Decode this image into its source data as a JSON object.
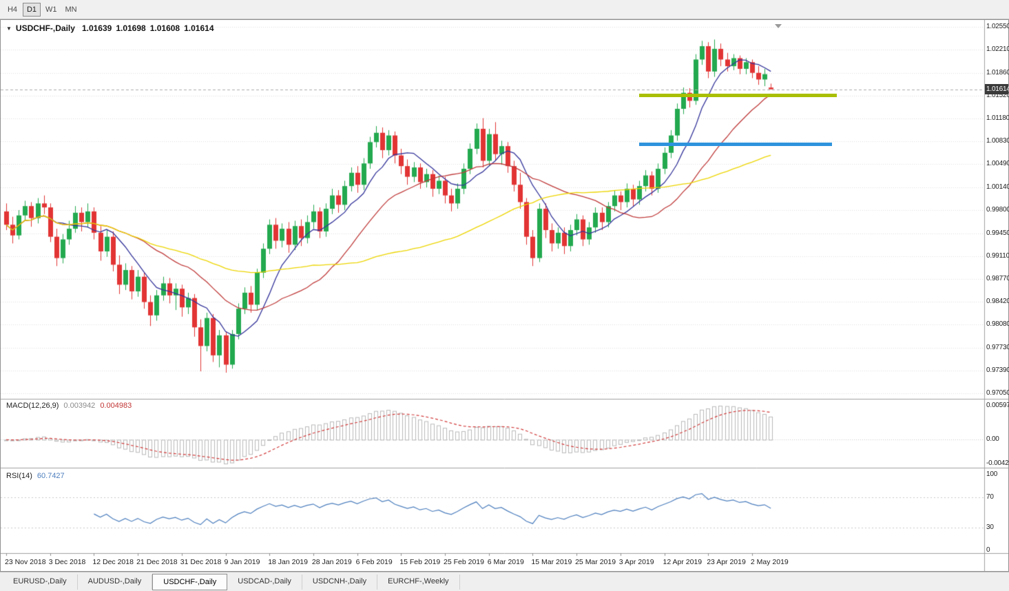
{
  "toolbar": {
    "timeframes": [
      "H4",
      "D1",
      "W1",
      "MN"
    ],
    "active": "D1"
  },
  "chart": {
    "symbol": "USDCHF-,Daily",
    "ohlc": {
      "open": "1.01639",
      "high": "1.01698",
      "low": "1.01608",
      "close": "1.01614"
    },
    "current_price": "1.01614",
    "price_scale_labels": [
      "1.02550",
      "1.02210",
      "1.01860",
      "1.01520",
      "1.01180",
      "1.00830",
      "1.00490",
      "1.00140",
      "0.99800",
      "0.99450",
      "0.99110",
      "0.98770",
      "0.98420",
      "0.98080",
      "0.97730",
      "0.97390",
      "0.97050"
    ],
    "date_labels": [
      "23 Nov 2018",
      "3 Dec 2018",
      "12 Dec 2018",
      "21 Dec 2018",
      "31 Dec 2018",
      "9 Jan 2019",
      "18 Jan 2019",
      "28 Jan 2019",
      "6 Feb 2019",
      "15 Feb 2019",
      "25 Feb 2019",
      "6 Mar 2019",
      "15 Mar 2019",
      "25 Mar 2019",
      "3 Apr 2019",
      "12 Apr 2019",
      "23 Apr 2019",
      "2 May 2019"
    ]
  },
  "macd_panel": {
    "label": "MACD(12,26,9)",
    "main_value": "0.003942",
    "signal_value": "0.004983",
    "scale_labels": [
      "0.00597",
      "0.00",
      "-0.00424"
    ]
  },
  "rsi_panel": {
    "label": "RSI(14)",
    "value": "60.7427",
    "scale_labels": [
      "100",
      "70",
      "30",
      "0"
    ]
  },
  "tabs": [
    "EURUSD-,Daily",
    "AUDUSD-,Daily",
    "USDCHF-,Daily",
    "USDCAD-,Daily",
    "USDCNH-,Daily",
    "EURCHF-,Weekly"
  ],
  "active_tab": "USDCHF-,Daily",
  "colors": {
    "bull": "#23A94F",
    "bear": "#E23434",
    "ma_fast": "#33339B",
    "ma_mid": "#C03A3A",
    "ma_slow": "#EDD500",
    "rsi": "#4D7FBE",
    "macd_signal": "#D23B3B",
    "macd_hist": "#B9B9B9",
    "grid": "#DEDEDE",
    "level_dash": "#C9C9C9",
    "resistance": "#A9BF04",
    "support": "#2E93DD",
    "badge_bg": "#3A3A3A",
    "separator": "#A0A0A0",
    "current_price_line": "#AAAAAA"
  },
  "chart_data": {
    "type": "candlestick",
    "title": "USDCHF-,Daily",
    "y_range": [
      0.9705,
      1.0255
    ],
    "x_tick_labels": [
      "23 Nov 2018",
      "3 Dec 2018",
      "12 Dec 2018",
      "21 Dec 2018",
      "31 Dec 2018",
      "9 Jan 2019",
      "18 Jan 2019",
      "28 Jan 2019",
      "6 Feb 2019",
      "15 Feb 2019",
      "25 Feb 2019",
      "6 Mar 2019",
      "15 Mar 2019",
      "25 Mar 2019",
      "3 Apr 2019",
      "12 Apr 2019",
      "23 Apr 2019",
      "2 May 2019"
    ],
    "bars_per_tick": 7,
    "candles": [
      [
        0.9978,
        0.999,
        0.995,
        0.9958
      ],
      [
        0.9958,
        0.997,
        0.993,
        0.9942
      ],
      [
        0.9942,
        0.998,
        0.9936,
        0.9972
      ],
      [
        0.9972,
        0.9994,
        0.9964,
        0.9986
      ],
      [
        0.9986,
        0.9992,
        0.9955,
        0.9968
      ],
      [
        0.9968,
        0.9998,
        0.996,
        0.999
      ],
      [
        0.999,
        1.0002,
        0.9974,
        0.9984
      ],
      [
        0.9984,
        0.999,
        0.9932,
        0.994
      ],
      [
        0.994,
        0.9952,
        0.9896,
        0.9908
      ],
      [
        0.9908,
        0.9944,
        0.99,
        0.9936
      ],
      [
        0.9936,
        0.9964,
        0.9928,
        0.9952
      ],
      [
        0.9952,
        0.9986,
        0.9946,
        0.9976
      ],
      [
        0.9976,
        0.9984,
        0.9948,
        0.9962
      ],
      [
        0.9962,
        0.999,
        0.9954,
        0.9978
      ],
      [
        0.9978,
        0.9984,
        0.9936,
        0.9946
      ],
      [
        0.9946,
        0.9956,
        0.9904,
        0.9918
      ],
      [
        0.9918,
        0.995,
        0.991,
        0.994
      ],
      [
        0.994,
        0.9948,
        0.9888,
        0.9898
      ],
      [
        0.9898,
        0.9912,
        0.9854,
        0.9868
      ],
      [
        0.9868,
        0.99,
        0.986,
        0.989
      ],
      [
        0.989,
        0.9896,
        0.9846,
        0.9858
      ],
      [
        0.9858,
        0.989,
        0.985,
        0.988
      ],
      [
        0.988,
        0.9886,
        0.9832,
        0.9842
      ],
      [
        0.9842,
        0.9852,
        0.9806,
        0.9822
      ],
      [
        0.9822,
        0.986,
        0.9814,
        0.9852
      ],
      [
        0.9852,
        0.988,
        0.9844,
        0.987
      ],
      [
        0.987,
        0.9878,
        0.984,
        0.9852
      ],
      [
        0.9852,
        0.987,
        0.983,
        0.9862
      ],
      [
        0.9862,
        0.9868,
        0.982,
        0.9834
      ],
      [
        0.9834,
        0.9856,
        0.9824,
        0.9848
      ],
      [
        0.9848,
        0.9854,
        0.979,
        0.9804
      ],
      [
        0.9804,
        0.9816,
        0.9738,
        0.9776
      ],
      [
        0.9776,
        0.9826,
        0.9768,
        0.9818
      ],
      [
        0.9818,
        0.9824,
        0.9752,
        0.9762
      ],
      [
        0.9762,
        0.98,
        0.9744,
        0.9792
      ],
      [
        0.9792,
        0.9798,
        0.9736,
        0.9748
      ],
      [
        0.9748,
        0.98,
        0.9742,
        0.9794
      ],
      [
        0.9794,
        0.984,
        0.9786,
        0.9832
      ],
      [
        0.9832,
        0.9864,
        0.9824,
        0.9856
      ],
      [
        0.9856,
        0.9866,
        0.9826,
        0.9838
      ],
      [
        0.9838,
        0.9892,
        0.983,
        0.9886
      ],
      [
        0.9886,
        0.993,
        0.9878,
        0.9922
      ],
      [
        0.9922,
        0.9966,
        0.9914,
        0.9958
      ],
      [
        0.9958,
        0.9968,
        0.9922,
        0.9934
      ],
      [
        0.9934,
        0.996,
        0.9924,
        0.9952
      ],
      [
        0.9952,
        0.9962,
        0.9916,
        0.9928
      ],
      [
        0.9928,
        0.9964,
        0.992,
        0.9956
      ],
      [
        0.9956,
        0.9966,
        0.9926,
        0.9938
      ],
      [
        0.9938,
        0.9972,
        0.993,
        0.9962
      ],
      [
        0.9962,
        0.9988,
        0.9952,
        0.9978
      ],
      [
        0.9978,
        0.9984,
        0.9938,
        0.9948
      ],
      [
        0.9948,
        0.999,
        0.994,
        0.9982
      ],
      [
        0.9982,
        1.0012,
        0.9974,
        1.0002
      ],
      [
        1.0002,
        1.001,
        0.9976,
        0.9988
      ],
      [
        0.9988,
        1.0024,
        0.998,
        1.0016
      ],
      [
        1.0016,
        1.0044,
        1.0008,
        1.0036
      ],
      [
        1.0036,
        1.0046,
        1.0006,
        1.0018
      ],
      [
        1.0018,
        1.0058,
        1.001,
        1.005
      ],
      [
        1.005,
        1.009,
        1.0042,
        1.0082
      ],
      [
        1.0082,
        1.0106,
        1.0074,
        1.0096
      ],
      [
        1.0096,
        1.0104,
        1.0058,
        1.007
      ],
      [
        1.007,
        1.01,
        1.0062,
        1.0092
      ],
      [
        1.0092,
        1.0098,
        1.005,
        1.0062
      ],
      [
        1.0062,
        1.0072,
        1.0034,
        1.0046
      ],
      [
        1.0046,
        1.0056,
        1.0018,
        1.003
      ],
      [
        1.003,
        1.0052,
        1.0022,
        1.0044
      ],
      [
        1.0044,
        1.005,
        1.0012,
        1.0022
      ],
      [
        1.0022,
        1.0042,
        1.0014,
        1.0034
      ],
      [
        1.0034,
        1.004,
        1.0,
        1.0012
      ],
      [
        1.0012,
        1.0032,
        1.0004,
        1.0024
      ],
      [
        1.0024,
        1.003,
        0.999,
        1.0002
      ],
      [
        1.0002,
        1.0012,
        0.9978,
        0.999
      ],
      [
        0.999,
        1.002,
        0.9982,
        1.0012
      ],
      [
        1.0012,
        1.005,
        1.0004,
        1.0042
      ],
      [
        1.0042,
        1.008,
        1.0034,
        1.0072
      ],
      [
        1.0072,
        1.011,
        1.0064,
        1.0102
      ],
      [
        1.0102,
        1.0118,
        1.0044,
        1.0054
      ],
      [
        1.0054,
        1.0102,
        1.0046,
        1.0094
      ],
      [
        1.0094,
        1.0112,
        1.0054,
        1.0064
      ],
      [
        1.0064,
        1.0084,
        1.0048,
        1.0076
      ],
      [
        1.0076,
        1.0082,
        1.0036,
        1.0046
      ],
      [
        1.0046,
        1.0054,
        1.0008,
        1.0018
      ],
      [
        1.0018,
        1.0036,
        0.9982,
        0.9992
      ],
      [
        0.9992,
        0.9998,
        0.9928,
        0.994
      ],
      [
        0.994,
        0.995,
        0.9896,
        0.9908
      ],
      [
        0.9908,
        0.999,
        0.9902,
        0.9982
      ],
      [
        0.9982,
        0.999,
        0.9938,
        0.995
      ],
      [
        0.995,
        0.996,
        0.9918,
        0.993
      ],
      [
        0.993,
        0.9954,
        0.9922,
        0.9946
      ],
      [
        0.9946,
        0.9954,
        0.9914,
        0.9926
      ],
      [
        0.9926,
        0.9958,
        0.9918,
        0.995
      ],
      [
        0.995,
        0.9974,
        0.9942,
        0.9966
      ],
      [
        0.9966,
        0.9972,
        0.9926,
        0.9936
      ],
      [
        0.9936,
        0.9962,
        0.9928,
        0.9954
      ],
      [
        0.9954,
        0.9984,
        0.9946,
        0.9976
      ],
      [
        0.9976,
        0.9984,
        0.995,
        0.9962
      ],
      [
        0.9962,
        0.9992,
        0.9954,
        0.9986
      ],
      [
        0.9986,
        1.001,
        0.9978,
        1.0002
      ],
      [
        1.0002,
        1.0008,
        0.998,
        0.9992
      ],
      [
        0.9992,
        1.002,
        0.9984,
        1.0012
      ],
      [
        1.0012,
        1.0018,
        0.9986,
        0.9996
      ],
      [
        0.9996,
        1.0024,
        0.9988,
        1.0016
      ],
      [
        1.0016,
        1.004,
        1.0008,
        1.0032
      ],
      [
        1.0032,
        1.0038,
        1.0002,
        1.0012
      ],
      [
        1.0012,
        1.005,
        1.0006,
        1.0042
      ],
      [
        1.0042,
        1.0074,
        1.0034,
        1.0066
      ],
      [
        1.0066,
        1.01,
        1.0058,
        1.0092
      ],
      [
        1.0092,
        1.014,
        1.0084,
        1.0132
      ],
      [
        1.0132,
        1.0164,
        1.0124,
        1.0156
      ],
      [
        1.0156,
        1.0163,
        1.0134,
        1.0144
      ],
      [
        1.0144,
        1.0214,
        1.0138,
        1.0206
      ],
      [
        1.0206,
        1.0234,
        1.0198,
        1.0226
      ],
      [
        1.0226,
        1.0232,
        1.0178,
        1.0188
      ],
      [
        1.0188,
        1.0236,
        1.018,
        1.0222
      ],
      [
        1.0222,
        1.023,
        1.0196,
        1.0206
      ],
      [
        1.0206,
        1.0216,
        1.0188,
        1.0196
      ],
      [
        1.0196,
        1.0214,
        1.019,
        1.0208
      ],
      [
        1.0208,
        1.0212,
        1.0184,
        1.0192
      ],
      [
        1.0192,
        1.0208,
        1.0184,
        1.0202
      ],
      [
        1.0202,
        1.0206,
        1.0178,
        1.0186
      ],
      [
        1.0186,
        1.0196,
        1.0168,
        1.0176
      ],
      [
        1.0176,
        1.0192,
        1.0166,
        1.0184
      ],
      [
        1.01639,
        1.01698,
        1.01608,
        1.01614
      ]
    ],
    "overlays": [
      {
        "type": "sma",
        "period": 8,
        "color": "#33339B"
      },
      {
        "type": "sma",
        "period": 21,
        "color": "#C03A3A"
      },
      {
        "type": "sma",
        "period": 50,
        "color": "#EDD500"
      }
    ],
    "objects": [
      {
        "type": "hline_segment",
        "name": "resistance",
        "price": 1.0152,
        "from_bar": 101,
        "to_bar": 132.5,
        "color": "#A9BF04",
        "width": 5
      },
      {
        "type": "hline_segment",
        "name": "support",
        "price": 1.0079,
        "from_bar": 101,
        "to_bar": 131.8,
        "color": "#2E93DD",
        "width": 5
      }
    ],
    "indicators": [
      {
        "type": "MACD",
        "params": [
          12,
          26,
          9
        ],
        "current": [
          0.003942,
          0.004983
        ],
        "scale": [
          0.00597,
          0.0,
          -0.00424
        ]
      },
      {
        "type": "RSI",
        "params": [
          14
        ],
        "current": 60.7427,
        "levels": [
          70,
          30
        ],
        "scale": [
          100,
          70,
          30,
          0
        ]
      }
    ]
  }
}
